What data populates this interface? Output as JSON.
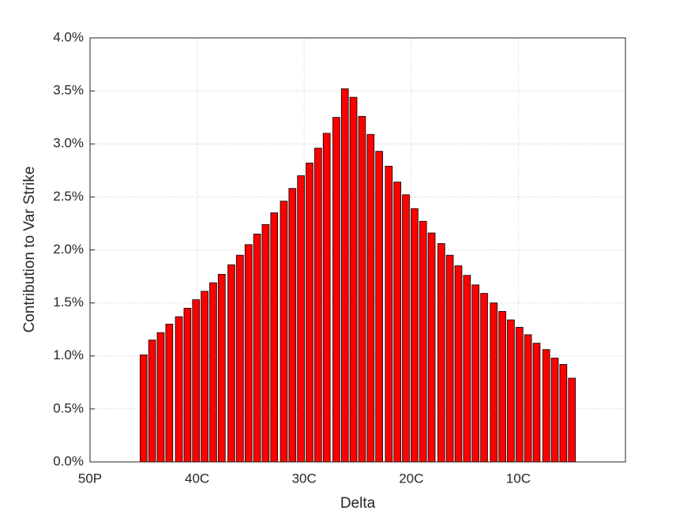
{
  "chart_data": {
    "type": "bar",
    "xlabel": "Delta",
    "ylabel": "Contribution to Var Strike",
    "color": "#ff0000",
    "edgecolor": "#000000",
    "grid": true,
    "x": [
      5.0,
      5.8,
      6.6,
      7.4,
      8.3,
      9.1,
      9.9,
      10.7,
      11.5,
      12.3,
      13.2,
      14.0,
      14.8,
      15.6,
      16.4,
      17.2,
      18.1,
      18.9,
      19.7,
      20.5,
      21.3,
      22.1,
      23.0,
      23.8,
      24.6,
      25.4,
      26.2,
      27.0,
      27.9,
      28.7,
      29.5,
      30.3,
      31.1,
      31.9,
      32.8,
      33.6,
      34.4,
      35.2,
      36.0,
      36.8,
      37.7,
      38.5,
      39.3,
      40.1,
      40.9,
      41.7,
      42.6,
      43.4,
      44.2,
      45.0
    ],
    "values": [
      1.01,
      1.15,
      1.22,
      1.3,
      1.37,
      1.45,
      1.53,
      1.61,
      1.69,
      1.77,
      1.86,
      1.95,
      2.05,
      2.15,
      2.24,
      2.35,
      2.46,
      2.58,
      2.7,
      2.82,
      2.96,
      3.1,
      3.25,
      3.52,
      3.44,
      3.26,
      3.09,
      2.93,
      2.79,
      2.64,
      2.52,
      2.39,
      2.27,
      2.16,
      2.06,
      1.95,
      1.85,
      1.76,
      1.67,
      1.59,
      1.5,
      1.42,
      1.34,
      1.27,
      1.2,
      1.12,
      1.06,
      0.98,
      0.92,
      0.79
    ],
    "xlim": [
      0,
      50
    ],
    "xticks": [
      {
        "value": 0,
        "label": "50P"
      },
      {
        "value": 10,
        "label": "40C"
      },
      {
        "value": 20,
        "label": "30C"
      },
      {
        "value": 30,
        "label": "20C"
      },
      {
        "value": 40,
        "label": "10C"
      }
    ],
    "ylim": [
      0,
      4
    ],
    "yticks": [
      {
        "value": 0,
        "label": "0.0%"
      },
      {
        "value": 0.5,
        "label": "0.5%"
      },
      {
        "value": 1,
        "label": "1.0%"
      },
      {
        "value": 1.5,
        "label": "1.5%"
      },
      {
        "value": 2,
        "label": "2.0%"
      },
      {
        "value": 2.5,
        "label": "2.5%"
      },
      {
        "value": 3,
        "label": "3.0%"
      },
      {
        "value": 3.5,
        "label": "3.5%"
      },
      {
        "value": 4,
        "label": "4.0%"
      }
    ]
  }
}
